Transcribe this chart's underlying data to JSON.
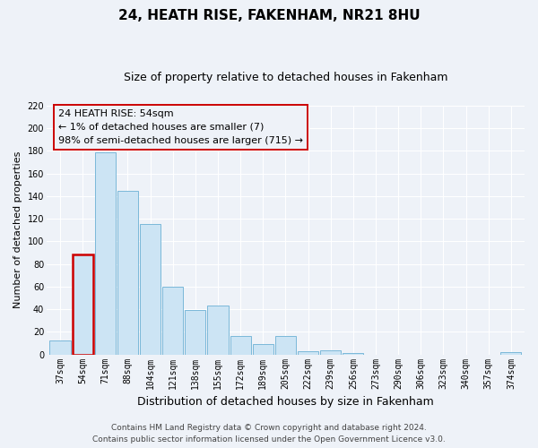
{
  "title": "24, HEATH RISE, FAKENHAM, NR21 8HU",
  "subtitle": "Size of property relative to detached houses in Fakenham",
  "xlabel": "Distribution of detached houses by size in Fakenham",
  "ylabel": "Number of detached properties",
  "bar_labels": [
    "37sqm",
    "54sqm",
    "71sqm",
    "88sqm",
    "104sqm",
    "121sqm",
    "138sqm",
    "155sqm",
    "172sqm",
    "189sqm",
    "205sqm",
    "222sqm",
    "239sqm",
    "256sqm",
    "273sqm",
    "290sqm",
    "306sqm",
    "323sqm",
    "340sqm",
    "357sqm",
    "374sqm"
  ],
  "bar_heights": [
    12,
    88,
    179,
    145,
    115,
    60,
    39,
    43,
    16,
    9,
    16,
    3,
    4,
    1,
    0,
    0,
    0,
    0,
    0,
    0,
    2
  ],
  "highlight_bar_index": 1,
  "bar_color_light": "#cce4f4",
  "bar_edge_color": "#7ab8d9",
  "highlight_bar_edge_color": "#cc0000",
  "ylim": [
    0,
    220
  ],
  "yticks": [
    0,
    20,
    40,
    60,
    80,
    100,
    120,
    140,
    160,
    180,
    200,
    220
  ],
  "annotation_lines": [
    "24 HEATH RISE: 54sqm",
    "← 1% of detached houses are smaller (7)",
    "98% of semi-detached houses are larger (715) →"
  ],
  "annotation_box_edge_color": "#cc0000",
  "footer_line1": "Contains HM Land Registry data © Crown copyright and database right 2024.",
  "footer_line2": "Contains public sector information licensed under the Open Government Licence v3.0.",
  "background_color": "#eef2f8",
  "grid_color": "#ffffff",
  "title_fontsize": 11,
  "subtitle_fontsize": 9,
  "ylabel_fontsize": 8,
  "xlabel_fontsize": 9,
  "tick_fontsize": 7,
  "annotation_fontsize": 8,
  "footer_fontsize": 6.5
}
